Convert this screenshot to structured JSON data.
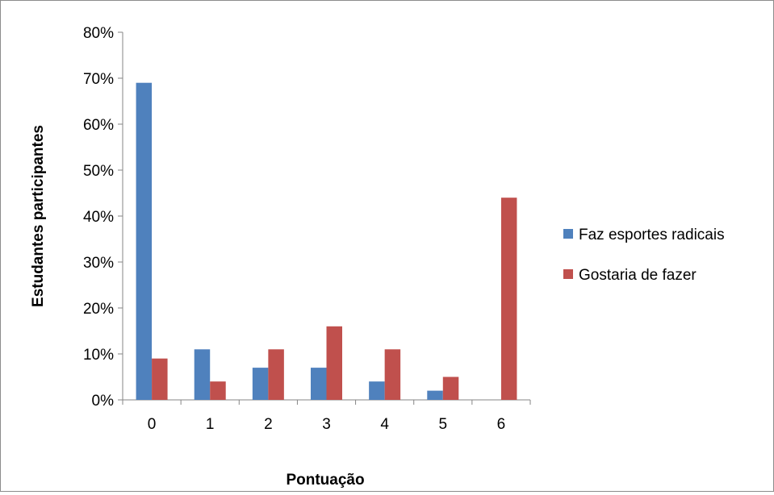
{
  "chart_data": {
    "type": "bar",
    "title": "",
    "xlabel": "Pontuação",
    "ylabel": "Estudantes participantes",
    "categories": [
      "0",
      "1",
      "2",
      "3",
      "4",
      "5",
      "6"
    ],
    "ylim": [
      0,
      80
    ],
    "y_ticks": [
      "0%",
      "10%",
      "20%",
      "30%",
      "40%",
      "50%",
      "60%",
      "70%",
      "80%"
    ],
    "y_tick_values": [
      0,
      10,
      20,
      30,
      40,
      50,
      60,
      70,
      80
    ],
    "grid": false,
    "legend_position": "right",
    "series": [
      {
        "name": "Faz esportes radicais",
        "color": "#4f81bd",
        "values": [
          69,
          11,
          7,
          7,
          4,
          2,
          0
        ]
      },
      {
        "name": "Gostaria de fazer",
        "color": "#c0504d",
        "values": [
          9,
          4,
          11,
          16,
          11,
          5,
          44
        ]
      }
    ]
  }
}
